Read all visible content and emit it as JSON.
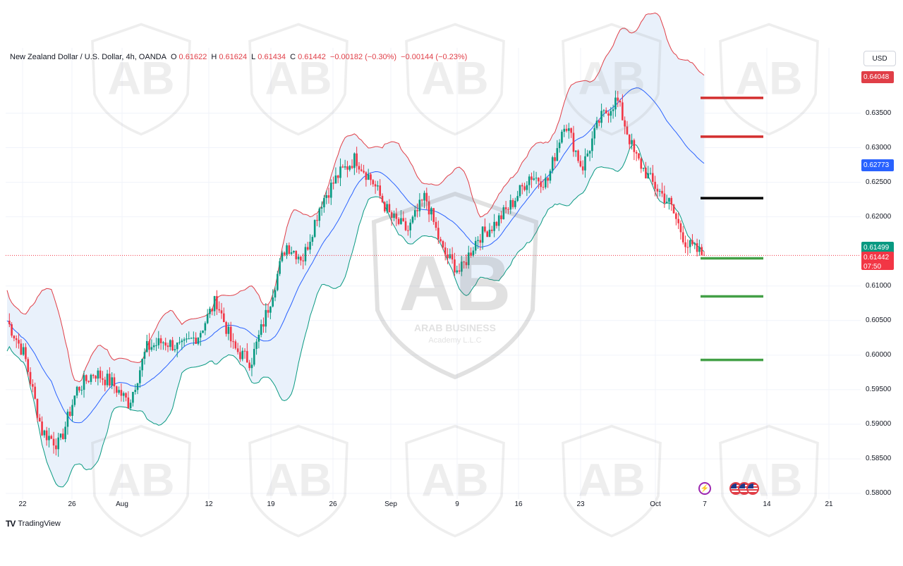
{
  "header": {
    "symbol": "New Zealand Dollar / U.S. Dollar, 4h, OANDA",
    "open_label": "O",
    "open": "0.61622",
    "high_label": "H",
    "high": "0.61624",
    "low_label": "L",
    "low": "0.61434",
    "close_label": "C",
    "close": "0.61442",
    "change": "−0.00182 (−0.30%)",
    "change2": "−0.00144 (−0.23%)"
  },
  "currency_button": "USD",
  "price_tags": {
    "upper_band": "0.64048",
    "middle_band": "0.62773",
    "lower_band": "0.61499",
    "last_price": "0.61442",
    "countdown": "07:50"
  },
  "branding": {
    "platform": "TradingView",
    "watermark_text": "ARAB BUSINESS",
    "watermark_sub": "Academy L.L.C"
  },
  "colors": {
    "bull": "#089981",
    "bear": "#f23645",
    "upper_band": "#e03e47",
    "middle_band": "#2962ff",
    "lower_band": "#089981",
    "band_fill": "#e9f1fb",
    "resistance": "#d32f2f",
    "pivot": "#000000",
    "support": "#43a047"
  },
  "chart_data": {
    "type": "candlestick",
    "symbol": "New Zealand Dollar / U.S. Dollar",
    "timeframe": "4h",
    "ylim": [
      0.58,
      0.641
    ],
    "y_ticks": [
      "0.63500",
      "0.63000",
      "0.62500",
      "0.62000",
      "0.61000",
      "0.60500",
      "0.60000",
      "0.59500",
      "0.59000",
      "0.58500",
      "0.58000"
    ],
    "x_ticks": [
      "22",
      "26",
      "Aug",
      "12",
      "19",
      "26",
      "Sep",
      "9",
      "16",
      "23",
      "Oct",
      "7",
      "14",
      "21"
    ],
    "price_path": [
      [
        "22",
        0.605
      ],
      [
        "24",
        0.6
      ],
      [
        "26",
        0.589
      ],
      [
        "28",
        0.587
      ],
      [
        "30",
        0.595
      ],
      [
        "Aug",
        0.5975
      ],
      [
        "2",
        0.596
      ],
      [
        "5",
        0.593
      ],
      [
        "6",
        0.601
      ],
      [
        "8",
        0.602
      ],
      [
        "10",
        0.601
      ],
      [
        "12",
        0.603
      ],
      [
        "14",
        0.608
      ],
      [
        "15",
        0.601
      ],
      [
        "17",
        0.599
      ],
      [
        "19",
        0.607
      ],
      [
        "21",
        0.616
      ],
      [
        "23",
        0.614
      ],
      [
        "26",
        0.622
      ],
      [
        "28",
        0.626
      ],
      [
        "29",
        0.6285
      ],
      [
        "30",
        0.625
      ],
      [
        "Sep",
        0.62
      ],
      [
        "4",
        0.618
      ],
      [
        "6",
        0.623
      ],
      [
        "9",
        0.615
      ],
      [
        "11",
        0.612
      ],
      [
        "13",
        0.617
      ],
      [
        "16",
        0.619
      ],
      [
        "18",
        0.622
      ],
      [
        "20",
        0.626
      ],
      [
        "23",
        0.625
      ],
      [
        "24",
        0.634
      ],
      [
        "25",
        0.627
      ],
      [
        "27",
        0.634
      ],
      [
        "30",
        0.637
      ],
      [
        "Oct",
        0.629
      ],
      [
        "2",
        0.625
      ],
      [
        "3",
        0.622
      ],
      [
        "4",
        0.616
      ],
      [
        "7",
        0.6144
      ]
    ],
    "bollinger": {
      "upper_end": 0.64048,
      "middle_end": 0.62773,
      "lower_end": 0.61499
    },
    "last_price": 0.61442,
    "levels": {
      "resistance": [
        0.6372,
        0.6316
      ],
      "pivot": [
        0.6227
      ],
      "support": [
        0.614,
        0.6085,
        0.5993
      ]
    }
  }
}
